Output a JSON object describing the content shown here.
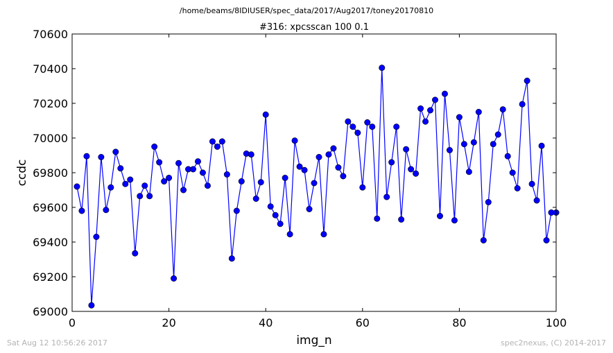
{
  "header": {
    "filepath": "/home/beams/8IDIUSER/spec_data/2017/Aug2017/toney20170810",
    "title": "#316: xpcsscan 100 0.1"
  },
  "footer": {
    "timestamp": "Sat Aug 12 10:56:26 2017",
    "credit": "spec2nexus, (C) 2014-2017"
  },
  "chart_data": {
    "type": "line",
    "title": "#316: xpcsscan 100 0.1",
    "xlabel": "img_n",
    "ylabel": "ccdc",
    "xlim": [
      0,
      100
    ],
    "ylim": [
      69000,
      70600
    ],
    "xticks": [
      0,
      20,
      40,
      60,
      80,
      100
    ],
    "yticks": [
      69000,
      69200,
      69400,
      69600,
      69800,
      70000,
      70200,
      70400,
      70600
    ],
    "grid": false,
    "line_color": "#0000ff",
    "marker_color": "#0000ff",
    "series": [
      {
        "x": [
          1,
          2,
          3,
          4,
          5,
          6,
          7,
          8,
          9,
          10,
          11,
          12,
          13,
          14,
          15,
          16,
          17,
          18,
          19,
          20,
          21,
          22,
          23,
          24,
          25,
          26,
          27,
          28,
          29,
          30,
          31,
          32,
          33,
          34,
          35,
          36,
          37,
          38,
          39,
          40,
          41,
          42,
          43,
          44,
          45,
          46,
          47,
          48,
          49,
          50,
          51,
          52,
          53,
          54,
          55,
          56,
          57,
          58,
          59,
          60,
          61,
          62,
          63,
          64,
          65,
          66,
          67,
          68,
          69,
          70,
          71,
          72,
          73,
          74,
          75,
          76,
          77,
          78,
          79,
          80,
          81,
          82,
          83,
          84,
          85,
          86,
          87,
          88,
          89,
          90,
          91,
          92,
          93,
          94,
          95,
          96,
          97,
          98,
          99,
          100
        ],
        "y": [
          69720,
          69580,
          69895,
          69035,
          69430,
          69890,
          69585,
          69715,
          69920,
          69825,
          69735,
          69760,
          69335,
          69665,
          69725,
          69665,
          69950,
          69860,
          69750,
          69770,
          69190,
          69855,
          69700,
          69820,
          69820,
          69865,
          69800,
          69725,
          69980,
          69950,
          69980,
          69790,
          69305,
          69580,
          69750,
          69910,
          69905,
          69650,
          69745,
          70135,
          69605,
          69555,
          69505,
          69770,
          69445,
          69985,
          69835,
          69815,
          69590,
          69740,
          69890,
          69445,
          69905,
          69940,
          69830,
          69780,
          70095,
          70065,
          70030,
          69715,
          70090,
          70065,
          69535,
          70405,
          69660,
          69860,
          70065,
          69530,
          69935,
          69820,
          69795,
          70170,
          70095,
          70160,
          70220,
          69550,
          70255,
          69930,
          69525,
          70120,
          69965,
          69805,
          69975,
          70150,
          69410,
          69630,
          69965,
          70020,
          70165,
          69895,
          69800,
          69710,
          70195,
          70330,
          69735,
          69640,
          69955,
          69410,
          69570,
          69570
        ]
      }
    ]
  }
}
